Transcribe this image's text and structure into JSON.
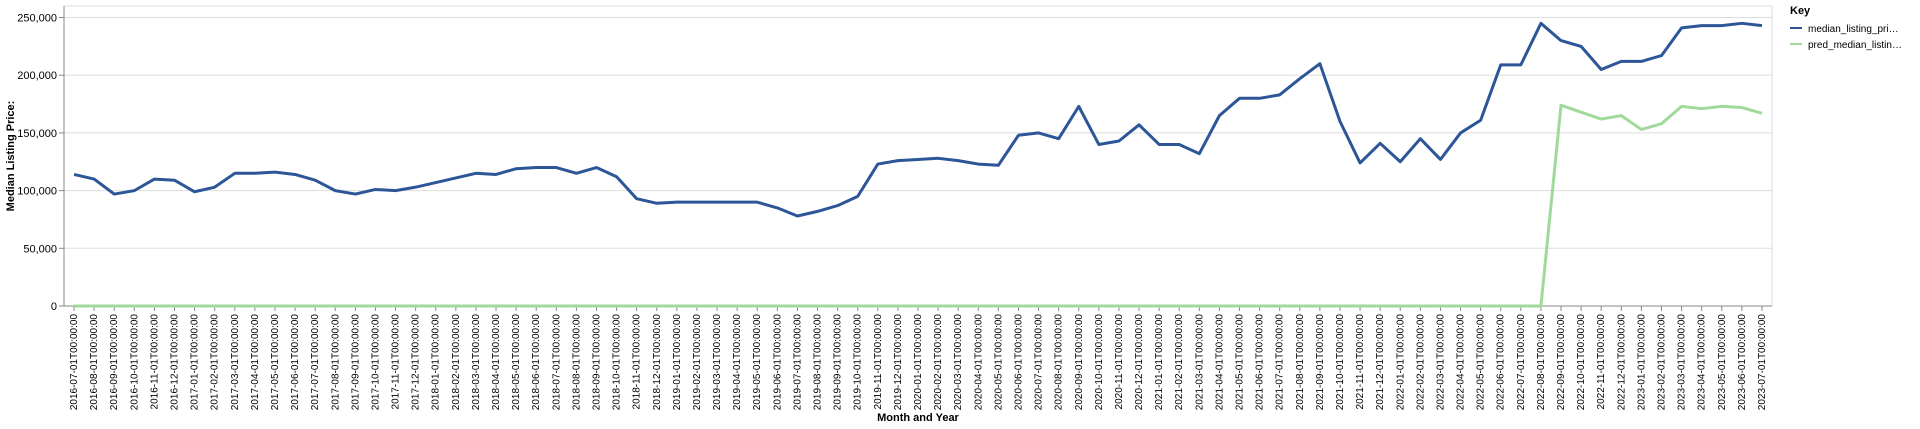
{
  "chart_data": {
    "type": "line",
    "y_label": "Median Listing Price:",
    "x_label": "Month and Year",
    "legend_title": "Key",
    "legend_position": "right",
    "grid": true,
    "categories": [
      "2016-07-01T00:00:00",
      "2016-08-01T00:00:00",
      "2016-09-01T00:00:00",
      "2016-10-01T00:00:00",
      "2016-11-01T00:00:00",
      "2016-12-01T00:00:00",
      "2017-01-01T00:00:00",
      "2017-02-01T00:00:00",
      "2017-03-01T00:00:00",
      "2017-04-01T00:00:00",
      "2017-05-01T00:00:00",
      "2017-06-01T00:00:00",
      "2017-07-01T00:00:00",
      "2017-08-01T00:00:00",
      "2017-09-01T00:00:00",
      "2017-10-01T00:00:00",
      "2017-11-01T00:00:00",
      "2017-12-01T00:00:00",
      "2018-01-01T00:00:00",
      "2018-02-01T00:00:00",
      "2018-03-01T00:00:00",
      "2018-04-01T00:00:00",
      "2018-05-01T00:00:00",
      "2018-06-01T00:00:00",
      "2018-07-01T00:00:00",
      "2018-08-01T00:00:00",
      "2018-09-01T00:00:00",
      "2018-10-01T00:00:00",
      "2018-11-01T00:00:00",
      "2018-12-01T00:00:00",
      "2019-01-01T00:00:00",
      "2019-02-01T00:00:00",
      "2019-03-01T00:00:00",
      "2019-04-01T00:00:00",
      "2019-05-01T00:00:00",
      "2019-06-01T00:00:00",
      "2019-07-01T00:00:00",
      "2019-08-01T00:00:00",
      "2019-09-01T00:00:00",
      "2019-10-01T00:00:00",
      "2019-11-01T00:00:00",
      "2019-12-01T00:00:00",
      "2020-01-01T00:00:00",
      "2020-02-01T00:00:00",
      "2020-03-01T00:00:00",
      "2020-04-01T00:00:00",
      "2020-05-01T00:00:00",
      "2020-06-01T00:00:00",
      "2020-07-01T00:00:00",
      "2020-08-01T00:00:00",
      "2020-09-01T00:00:00",
      "2020-10-01T00:00:00",
      "2020-11-01T00:00:00",
      "2020-12-01T00:00:00",
      "2021-01-01T00:00:00",
      "2021-02-01T00:00:00",
      "2021-03-01T00:00:00",
      "2021-04-01T00:00:00",
      "2021-05-01T00:00:00",
      "2021-06-01T00:00:00",
      "2021-07-01T00:00:00",
      "2021-08-01T00:00:00",
      "2021-09-01T00:00:00",
      "2021-10-01T00:00:00",
      "2021-11-01T00:00:00",
      "2021-12-01T00:00:00",
      "2022-01-01T00:00:00",
      "2022-02-01T00:00:00",
      "2022-03-01T00:00:00",
      "2022-04-01T00:00:00",
      "2022-05-01T00:00:00",
      "2022-06-01T00:00:00",
      "2022-07-01T00:00:00",
      "2022-08-01T00:00:00",
      "2022-09-01T00:00:00",
      "2022-10-01T00:00:00",
      "2022-11-01T00:00:00",
      "2022-12-01T00:00:00",
      "2023-01-01T00:00:00",
      "2023-02-01T00:00:00",
      "2023-03-01T00:00:00",
      "2023-04-01T00:00:00",
      "2023-05-01T00:00:00",
      "2023-06-01T00:00:00",
      "2023-07-01T00:00:00"
    ],
    "series": [
      {
        "name": "median_listing_pri…",
        "color": "#2c5697",
        "values": [
          114000,
          110000,
          97000,
          100000,
          110000,
          109000,
          99000,
          103000,
          115000,
          115000,
          116000,
          114000,
          109000,
          100000,
          97000,
          101000,
          100000,
          103000,
          107000,
          111000,
          115000,
          114000,
          119000,
          120000,
          120000,
          115000,
          120000,
          112000,
          93000,
          89000,
          90000,
          90000,
          90000,
          90000,
          90000,
          85000,
          78000,
          82000,
          87000,
          95000,
          123000,
          126000,
          127000,
          128000,
          126000,
          123000,
          122000,
          148000,
          150000,
          145000,
          173000,
          140000,
          143000,
          157000,
          140000,
          140000,
          132000,
          165000,
          180000,
          180000,
          183000,
          197000,
          210000,
          160000,
          124000,
          141000,
          125000,
          145000,
          127000,
          150000,
          161000,
          209000,
          209000,
          245000,
          230000,
          225000,
          205000,
          212000,
          212000,
          217000,
          241000,
          243000,
          243000,
          245000,
          243000
        ]
      },
      {
        "name": "pred_median_listin…",
        "color": "#a1d99b",
        "values": [
          0,
          0,
          0,
          0,
          0,
          0,
          0,
          0,
          0,
          0,
          0,
          0,
          0,
          0,
          0,
          0,
          0,
          0,
          0,
          0,
          0,
          0,
          0,
          0,
          0,
          0,
          0,
          0,
          0,
          0,
          0,
          0,
          0,
          0,
          0,
          0,
          0,
          0,
          0,
          0,
          0,
          0,
          0,
          0,
          0,
          0,
          0,
          0,
          0,
          0,
          0,
          0,
          0,
          0,
          0,
          0,
          0,
          0,
          0,
          0,
          0,
          0,
          0,
          0,
          0,
          0,
          0,
          0,
          0,
          0,
          0,
          0,
          0,
          0,
          174000,
          168000,
          162000,
          165000,
          153000,
          158000,
          173000,
          171000,
          173000,
          172000,
          167000
        ]
      }
    ],
    "ylim": [
      0,
      260000
    ],
    "yticks": [
      0,
      {
        "value": 50000,
        "label": "50,000"
      },
      {
        "value": 100000,
        "label": "100,000"
      },
      {
        "value": 150000,
        "label": "150,000"
      },
      {
        "value": 200000,
        "label": "200,000"
      },
      {
        "value": 250000,
        "label": "250,000"
      }
    ]
  }
}
